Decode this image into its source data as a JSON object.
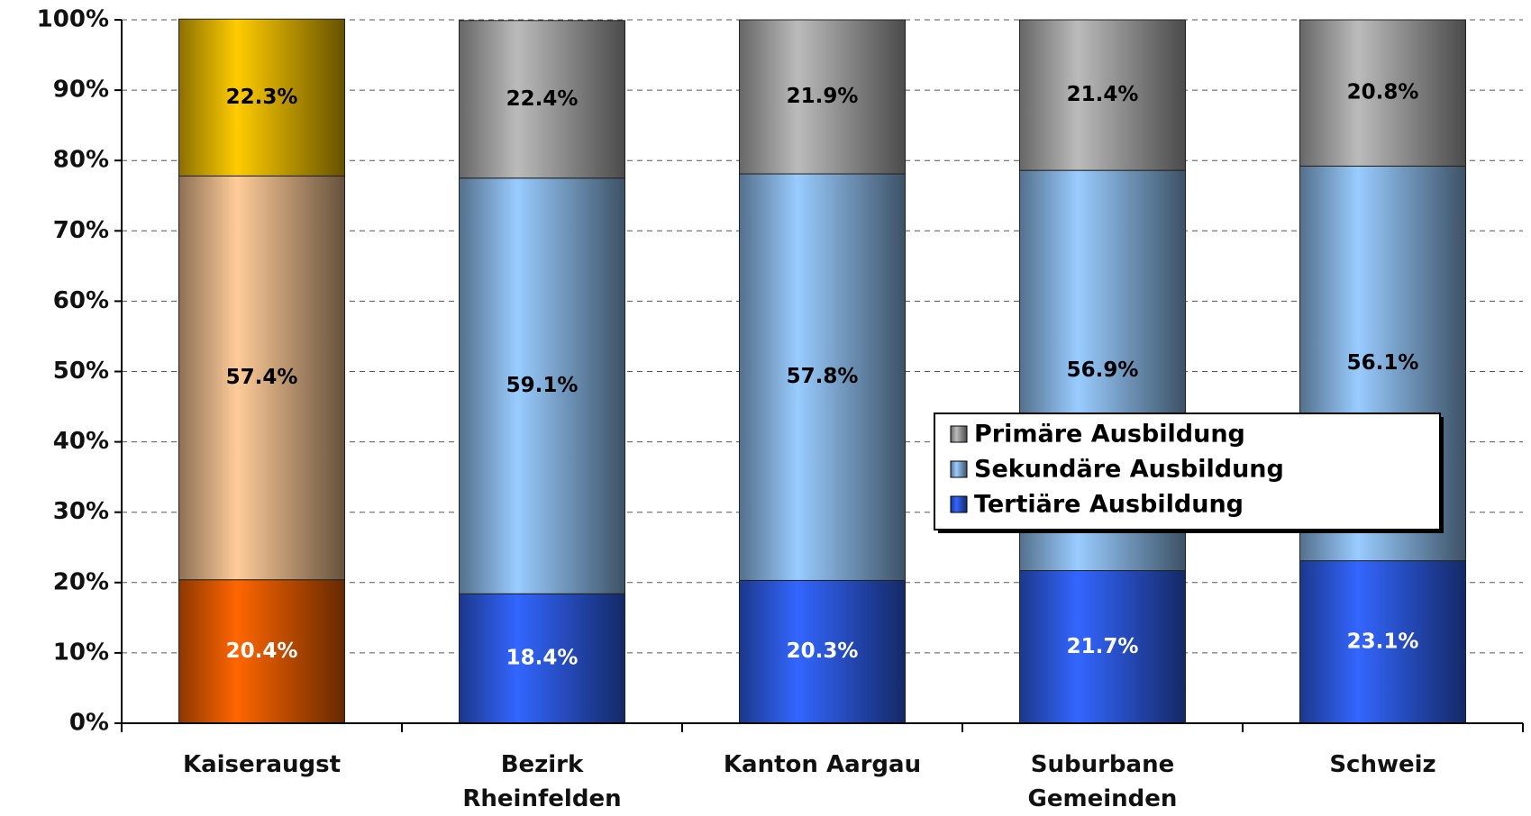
{
  "chart_data": {
    "type": "stacked_bar",
    "categories": [
      "Kaiseraugst",
      "Bezirk\nRheinfelden",
      "Kanton Aargau",
      "Suburbane\nGemeinden",
      "Schweiz"
    ],
    "series": [
      {
        "name": "Primäre Ausbildung",
        "color": "#bbbbbb",
        "colors": [
          "#ffcc00",
          "#bbbbbb",
          "#bbbbbb",
          "#bbbbbb",
          "#bbbbbb"
        ],
        "values": [
          22.3,
          22.4,
          21.9,
          21.4,
          20.8
        ],
        "value_labels": [
          "22.3%",
          "22.4%",
          "21.9%",
          "21.4%",
          "20.8%"
        ]
      },
      {
        "name": "Sekundäre Ausbildung",
        "color": "#99ccff",
        "colors": [
          "#ffcc99",
          "#99ccff",
          "#99ccff",
          "#99ccff",
          "#99ccff"
        ],
        "values": [
          57.4,
          59.1,
          57.8,
          56.9,
          56.1
        ],
        "value_labels": [
          "57.4%",
          "59.1%",
          "57.8%",
          "56.9%",
          "56.1%"
        ]
      },
      {
        "name": "Tertiäre Ausbildung",
        "color": "#3366ff",
        "colors": [
          "#ff6600",
          "#3366ff",
          "#3366ff",
          "#3366ff",
          "#3366ff"
        ],
        "values": [
          20.4,
          18.4,
          20.3,
          21.7,
          23.1
        ],
        "value_labels": [
          "20.4%",
          "18.4%",
          "20.3%",
          "21.7%",
          "23.1%"
        ]
      }
    ],
    "ylim": [
      0,
      100
    ],
    "yticks": [
      {
        "value": 0,
        "label": "0%"
      },
      {
        "value": 10,
        "label": "10%"
      },
      {
        "value": 20,
        "label": "20%"
      },
      {
        "value": 30,
        "label": "30%"
      },
      {
        "value": 40,
        "label": "40%"
      },
      {
        "value": 50,
        "label": "50%"
      },
      {
        "value": 60,
        "label": "60%"
      },
      {
        "value": 70,
        "label": "70%"
      },
      {
        "value": 80,
        "label": "80%"
      },
      {
        "value": 90,
        "label": "90%"
      },
      {
        "value": 100,
        "label": "100%"
      }
    ],
    "grid": true
  }
}
